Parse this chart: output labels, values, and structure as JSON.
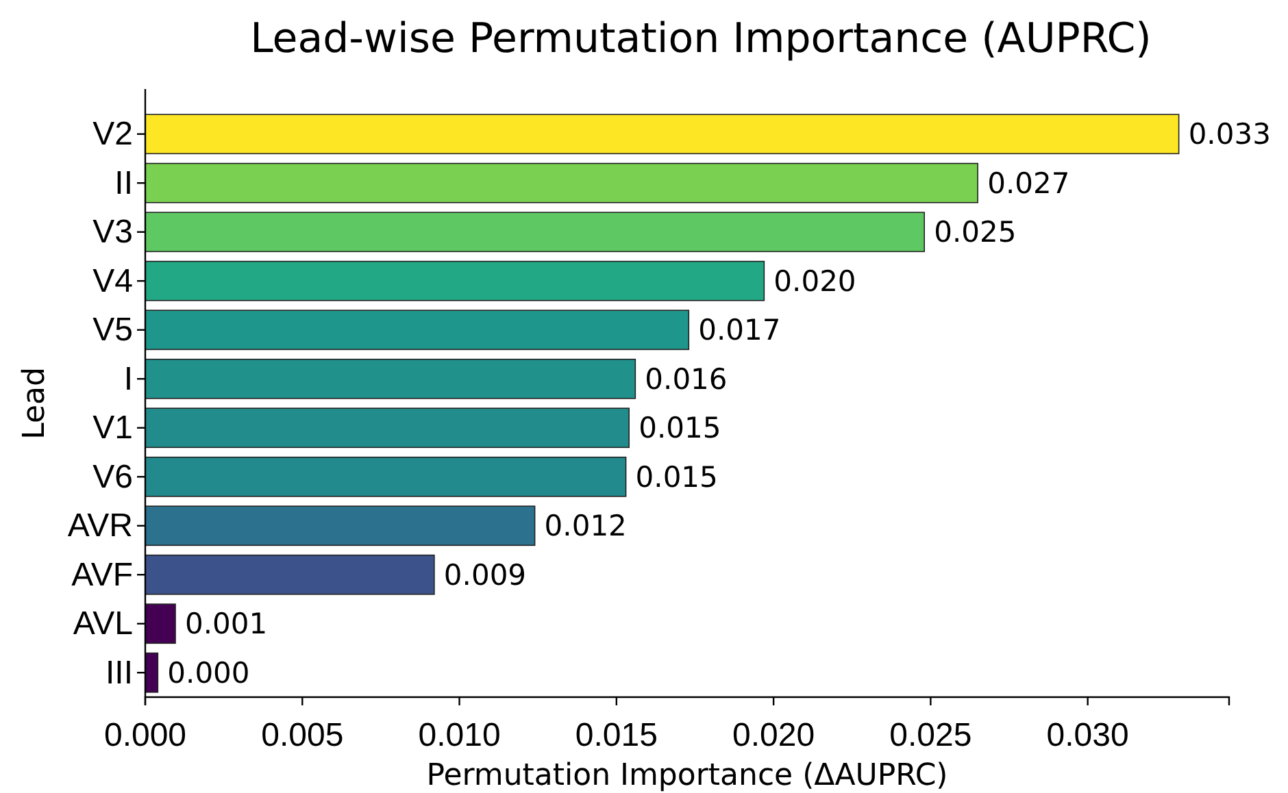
{
  "chart_data": {
    "type": "bar",
    "orientation": "horizontal",
    "title": "Lead-wise Permutation Importance (AUPRC)",
    "xlabel": "Permutation Importance (ΔAUPRC)",
    "ylabel": "Lead",
    "categories": [
      "V2",
      "II",
      "V3",
      "V4",
      "V5",
      "I",
      "V1",
      "V6",
      "AVR",
      "AVF",
      "AVL",
      "III"
    ],
    "values": [
      0.0329,
      0.0265,
      0.0248,
      0.0197,
      0.0173,
      0.0156,
      0.0154,
      0.0153,
      0.0124,
      0.0092,
      0.00096,
      0.0004
    ],
    "value_labels": [
      "0.033",
      "0.027",
      "0.025",
      "0.020",
      "0.017",
      "0.016",
      "0.015",
      "0.015",
      "0.012",
      "0.009",
      "0.001",
      "0.000"
    ],
    "colors": [
      "#fde725",
      "#7ad151",
      "#5ec962",
      "#22a884",
      "#1f968b",
      "#21918c",
      "#228c8d",
      "#228a8d",
      "#2c728e",
      "#3b528b",
      "#440154",
      "#440154"
    ],
    "xlim": [
      0,
      0.0345
    ],
    "xticks": [
      {
        "value": 0,
        "label": "0.000"
      },
      {
        "value": 0.005,
        "label": "0.005"
      },
      {
        "value": 0.01,
        "label": "0.010"
      },
      {
        "value": 0.015,
        "label": "0.015"
      },
      {
        "value": 0.02,
        "label": "0.020"
      },
      {
        "value": 0.025,
        "label": "0.025"
      },
      {
        "value": 0.03,
        "label": "0.030"
      }
    ],
    "grid": false
  }
}
